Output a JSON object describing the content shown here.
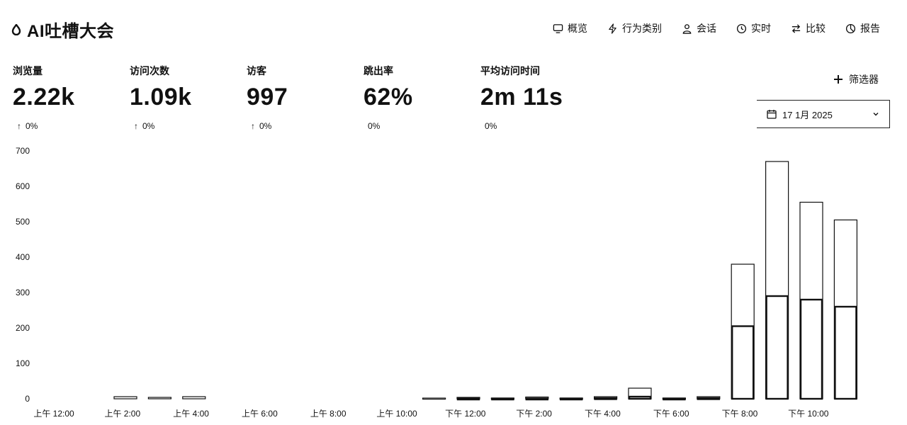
{
  "app": {
    "title": "AI吐槽大会",
    "logo_icon": "drop-icon"
  },
  "nav": [
    {
      "label": "概览",
      "icon": "monitor-icon"
    },
    {
      "label": "行为类别",
      "icon": "lightning-icon"
    },
    {
      "label": "会话",
      "icon": "user-icon"
    },
    {
      "label": "实时",
      "icon": "clock-icon"
    },
    {
      "label": "比较",
      "icon": "arrows-icon"
    },
    {
      "label": "报告",
      "icon": "pie-icon"
    }
  ],
  "metrics": [
    {
      "label": "浏览量",
      "value": "2.22k",
      "change": "0%",
      "arrow": "↑"
    },
    {
      "label": "访问次数",
      "value": "1.09k",
      "change": "0%",
      "arrow": "↑"
    },
    {
      "label": "访客",
      "value": "997",
      "change": "0%",
      "arrow": "↑"
    },
    {
      "label": "跳出率",
      "value": "62%",
      "change": "0%",
      "arrow": ""
    },
    {
      "label": "平均访问时间",
      "value": "2m 11s",
      "change": "0%",
      "arrow": ""
    }
  ],
  "filter": {
    "label": "筛选器"
  },
  "date_picker": {
    "value": "17 1月 2025"
  },
  "chart_data": {
    "type": "bar",
    "ylim": [
      0,
      700
    ],
    "yticks": [
      0,
      100,
      200,
      300,
      400,
      500,
      600,
      700
    ],
    "xtick_labels": [
      "上午 12:00",
      "上午 2:00",
      "上午 4:00",
      "上午 6:00",
      "上午 8:00",
      "上午 10:00",
      "下午 12:00",
      "下午 2:00",
      "下午 4:00",
      "下午 6:00",
      "下午 8:00",
      "下午 10:00"
    ],
    "hours": [
      0,
      1,
      2,
      3,
      4,
      5,
      6,
      7,
      8,
      9,
      10,
      11,
      12,
      13,
      14,
      15,
      16,
      17,
      18,
      19,
      20,
      21,
      22,
      23
    ],
    "series": [
      {
        "values": [
          0,
          0,
          0,
          0,
          0,
          0,
          0,
          0,
          0,
          0,
          0,
          0,
          1,
          1,
          1,
          1,
          2,
          6,
          1,
          2,
          205,
          290,
          280,
          260
        ]
      },
      {
        "values": [
          0,
          0,
          6,
          4,
          6,
          0,
          0,
          0,
          0,
          0,
          0,
          2,
          4,
          2,
          5,
          2,
          6,
          30,
          2,
          6,
          380,
          670,
          555,
          505
        ]
      }
    ]
  }
}
